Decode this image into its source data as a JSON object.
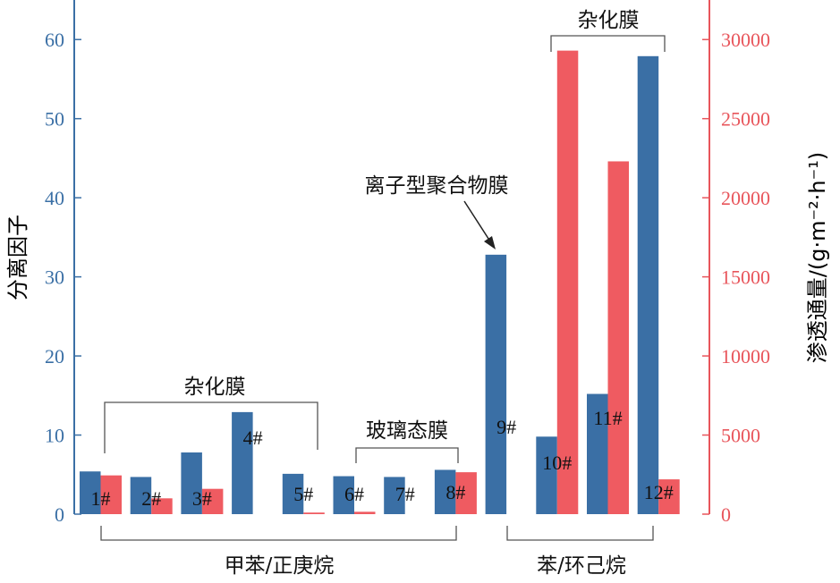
{
  "chart_data": {
    "type": "bar",
    "categories": [
      "1#",
      "2#",
      "3#",
      "4#",
      "5#",
      "6#",
      "7#",
      "8#",
      "9#",
      "10#",
      "11#",
      "12#"
    ],
    "series": [
      {
        "name": "",
        "axis": "left",
        "color": "#3a6fa5",
        "values": [
          5.4,
          4.7,
          7.8,
          12.9,
          5.1,
          4.8,
          4.7,
          5.6,
          32.8,
          9.8,
          15.2,
          57.9
        ]
      },
      {
        "name": "",
        "axis": "right",
        "color": "#ef5b61",
        "values": [
          2450,
          1000,
          1600,
          0,
          100,
          150,
          0,
          2650,
          0,
          29300,
          22300,
          2200
        ]
      }
    ],
    "ylabel": "分离因子",
    "ylabel_right": "渗透通量/(g·m⁻²·h⁻¹)",
    "ylim": [
      0,
      65
    ],
    "ylim_right": [
      0,
      32500
    ],
    "yticks": [
      0,
      10,
      20,
      30,
      40,
      50,
      60
    ],
    "yticks_right": [
      0,
      5000,
      10000,
      15000,
      20000,
      25000,
      30000
    ],
    "annotations": {
      "hybrid_left": "杂化膜",
      "glassy": "玻璃态膜",
      "ionic": "离子型聚合物膜",
      "hybrid_right": "杂化膜"
    },
    "groups": {
      "toluene_heptane": "甲苯/正庚烷",
      "benzene_cyclohexane": "苯/环己烷"
    },
    "colors": {
      "left_axis": "#3a6fa5",
      "right_axis": "#e8555b",
      "bar_blue": "#3a6fa5",
      "bar_red": "#ef5b61"
    }
  }
}
